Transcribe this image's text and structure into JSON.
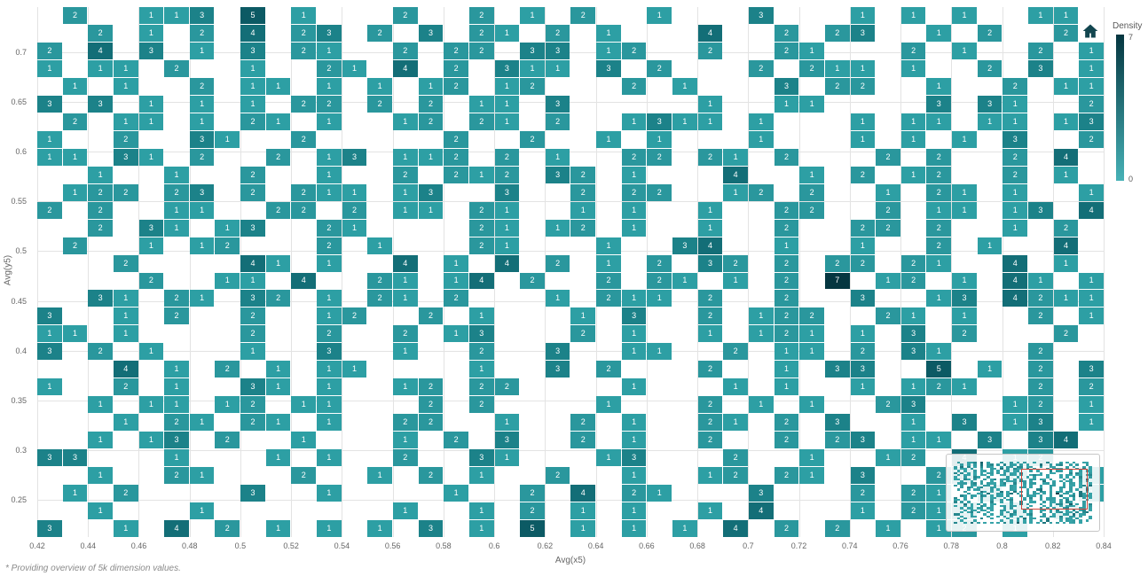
{
  "footnote": "* Providing overview of 5k dimension values.",
  "navigator": {
    "viewport_color": "#d0453a"
  },
  "chart_data": {
    "type": "heatmap",
    "title": "",
    "xlabel": "Avg(x5)",
    "ylabel": "Avg(y5)",
    "legend": {
      "title": "Density",
      "max": "7",
      "min": "0",
      "position": "right"
    },
    "x_range": [
      0.42,
      0.84
    ],
    "y_range": [
      0.25,
      0.72
    ],
    "x_ticks": [
      "0.42",
      "0.44",
      "0.46",
      "0.48",
      "0.5",
      "0.52",
      "0.54",
      "0.56",
      "0.58",
      "0.6",
      "0.62",
      "0.64",
      "0.66",
      "0.68",
      "0.7",
      "0.72",
      "0.74",
      "0.76",
      "0.78",
      "0.8",
      "0.82",
      "0.84"
    ],
    "y_ticks": [
      "0.7",
      "0.65",
      "0.6",
      "0.55",
      "0.5",
      "0.45",
      "0.4",
      "0.35",
      "0.3",
      "0.25"
    ],
    "grid_format": "30 rows x 42 cols; digit = density value shown in cell, '.' = empty white cell",
    "grid": [
      ".2..113.5.1...2..2.1.2..1...3...1.1.1..11.",
      "..2.1.2.4.23.2.3.21.2.1...4..2.23..1.2..2.",
      "2.4.3.1.3.21..2.22.33.12..2..21...2.1..2.1",
      "1.11.2..1..21.4.2.311.3.2...2.211.1..2.3.1",
      ".1.1..2.11.1.1.12.12...2.1...3.22..1..2.11",
      "3.3.1.1.1.22.2.2.11.3.....1..11....3.31..2",
      ".2.11.1.21.1..12.21.2..1311.1...1.11.11.13",
      "1..2..31..2.....2..2..1.1...1...1.1.1.3..2",
      "11.31.2..2.13.112.2.1..22.21.2...2.2..2.4.",
      "..1..1..2..1..2.212.32.1...4..1.2.12..2.1.",
      ".122.23.2.211.13..3..2.22..12.2..1.21.1..1",
      "2.2..11..22.2.11.21..1.1..1..22..2.11.13.4",
      "..2.31.13..21....21.12.1..1..2..22.2..1.2.",
      ".2..1.12...2.1...21...1..34..1..1..2.1..4.",
      "...2....41.1..4.1.4.2.1.2.32.2.22.21..4.1.",
      "....2..11.4..21.14.2..2.21.1.2.7.12.1.41.1",
      "..31.21.32.1.21.2...1.211.2..2..3..13.4211",
      "3..1.2..2..12..2.1...1.3..2.122..21.1..2.1",
      "11.1....2..2..2.13...2.1..1.121.1.3.2...2.",
      "3.2.1...1..3..1..2..3..11..2.11.2.31...2..",
      "...4.1.2.1.11....1..3.2...2..1.33..5.1.2.3",
      "1..2.1..31.1..12.22....1...1.1..1.121..2.2",
      "..1.11.12.11...2.2....1...2.1.1..23...12.1",
      "...1.21.21.1..22..1..2.1..21.2.3..1.3.13.1",
      "..1.13.2..1...1.2.3..2.1..2..2.23.11.3.34.",
      "33...1...1.1..2..31...13...2..1..12.4.12..",
      "..1..21...2..1.2.1..2..1..12.21.3..22.1..1",
      ".1.2....3..1....1..2.4.21...3...2.21.2...1",
      "..1...1.......1..1.2.1.1..1.4...1.212.1.1.",
      "3..1.4.2.1.1.1.3.1.5.1.1.1.4.2.2.1.12.1..."
    ],
    "colors": {
      "0": "#46b1b6",
      "1": "#2d9fa4",
      "2": "#2a979d",
      "3": "#1c8289",
      "4": "#136e77",
      "5": "#0c5a64",
      "6": "#07464f",
      "7": "#053640"
    }
  }
}
